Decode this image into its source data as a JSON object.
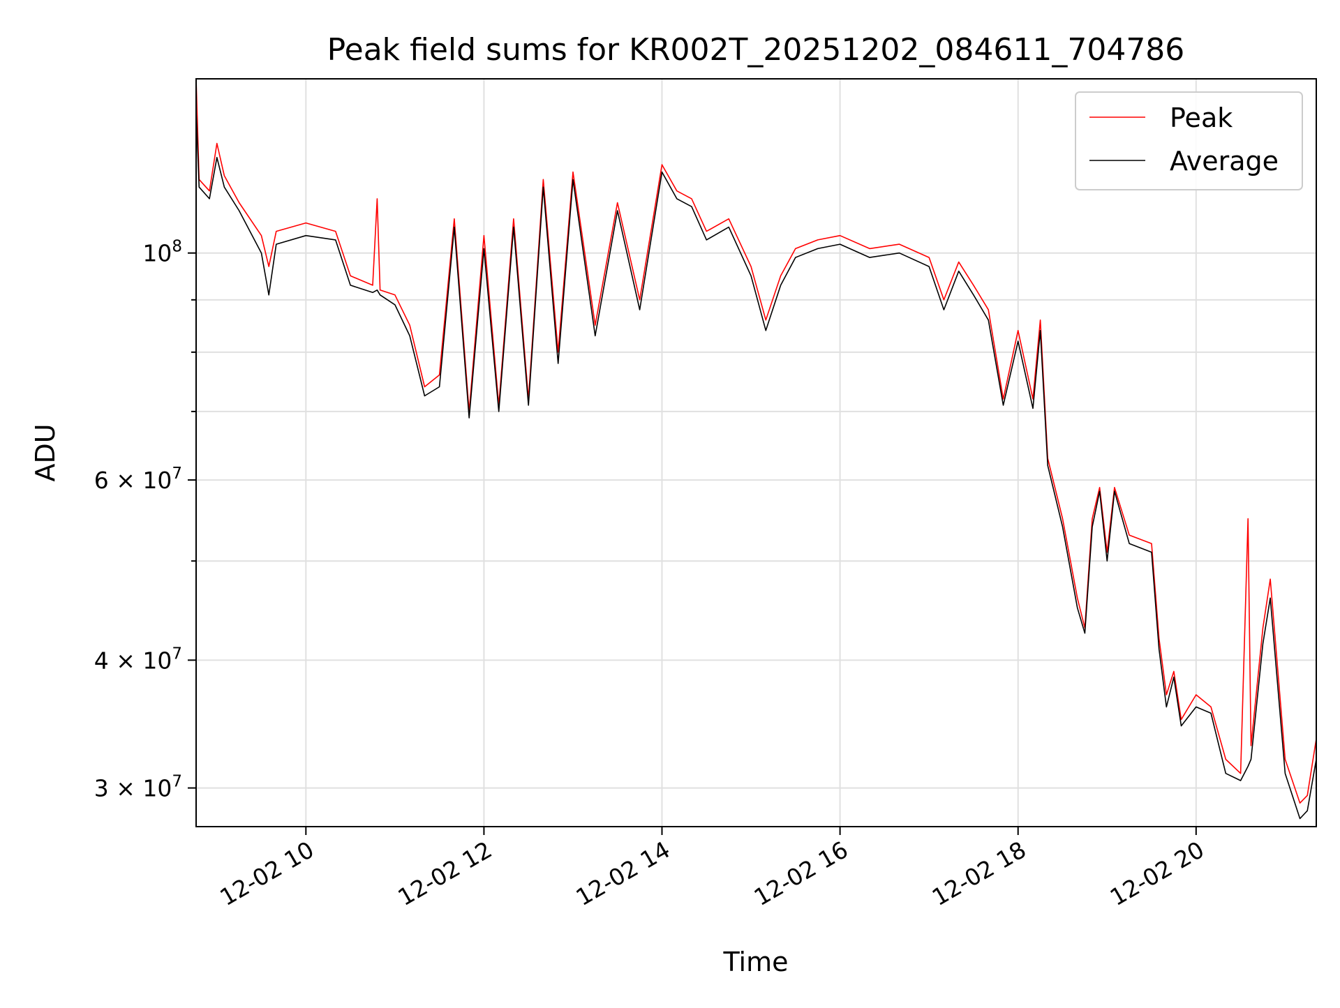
{
  "chart_data": {
    "type": "line",
    "title": "Peak field sums for KR002T_20251202_084611_704786",
    "xlabel": "Time",
    "ylabel": "ADU",
    "x_scale": "time",
    "y_scale": "log",
    "xlim": [
      "2025-12-02 08:46",
      "2025-12-02 21:21"
    ],
    "ylim": [
      27500000,
      148000000
    ],
    "x_ticks": [
      {
        "value": "2025-12-02 10:00",
        "label": "12-02 10"
      },
      {
        "value": "2025-12-02 12:00",
        "label": "12-02 12"
      },
      {
        "value": "2025-12-02 14:00",
        "label": "12-02 14"
      },
      {
        "value": "2025-12-02 16:00",
        "label": "12-02 16"
      },
      {
        "value": "2025-12-02 18:00",
        "label": "12-02 18"
      },
      {
        "value": "2025-12-02 20:00",
        "label": "12-02 20"
      }
    ],
    "y_major_ticks": [
      {
        "value": 100000000,
        "base": "10",
        "exp": "8"
      },
      {
        "value": 60000000,
        "base": "6 × 10",
        "exp": "7"
      },
      {
        "value": 40000000,
        "base": "4 × 10",
        "exp": "7"
      },
      {
        "value": 30000000,
        "base": "3 × 10",
        "exp": "7"
      }
    ],
    "y_minor_ticks": [
      90000000,
      80000000,
      70000000,
      50000000
    ],
    "grid": true,
    "legend_position": "upper right",
    "series": [
      {
        "name": "Peak",
        "color": "#ff0000",
        "points": [
          [
            "2025-12-02 08:46",
            148000000
          ],
          [
            "2025-12-02 08:48",
            118000000
          ],
          [
            "2025-12-02 08:55",
            115000000
          ],
          [
            "2025-12-02 09:00",
            128000000
          ],
          [
            "2025-12-02 09:05",
            119000000
          ],
          [
            "2025-12-02 09:15",
            112000000
          ],
          [
            "2025-12-02 09:30",
            104000000
          ],
          [
            "2025-12-02 09:35",
            97000000
          ],
          [
            "2025-12-02 09:40",
            105000000
          ],
          [
            "2025-12-02 10:00",
            107000000
          ],
          [
            "2025-12-02 10:20",
            105000000
          ],
          [
            "2025-12-02 10:30",
            95000000
          ],
          [
            "2025-12-02 10:45",
            93000000
          ],
          [
            "2025-12-02 10:48",
            113000000
          ],
          [
            "2025-12-02 10:50",
            92000000
          ],
          [
            "2025-12-02 11:00",
            91000000
          ],
          [
            "2025-12-02 11:10",
            85000000
          ],
          [
            "2025-12-02 11:20",
            74000000
          ],
          [
            "2025-12-02 11:30",
            76000000
          ],
          [
            "2025-12-02 11:40",
            108000000
          ],
          [
            "2025-12-02 11:50",
            70000000
          ],
          [
            "2025-12-02 12:00",
            104000000
          ],
          [
            "2025-12-02 12:10",
            71000000
          ],
          [
            "2025-12-02 12:20",
            108000000
          ],
          [
            "2025-12-02 12:30",
            72000000
          ],
          [
            "2025-12-02 12:40",
            118000000
          ],
          [
            "2025-12-02 12:50",
            80000000
          ],
          [
            "2025-12-02 13:00",
            120000000
          ],
          [
            "2025-12-02 13:15",
            85000000
          ],
          [
            "2025-12-02 13:30",
            112000000
          ],
          [
            "2025-12-02 13:45",
            90000000
          ],
          [
            "2025-12-02 14:00",
            122000000
          ],
          [
            "2025-12-02 14:10",
            115000000
          ],
          [
            "2025-12-02 14:20",
            113000000
          ],
          [
            "2025-12-02 14:30",
            105000000
          ],
          [
            "2025-12-02 14:45",
            108000000
          ],
          [
            "2025-12-02 15:00",
            97000000
          ],
          [
            "2025-12-02 15:10",
            86000000
          ],
          [
            "2025-12-02 15:20",
            95000000
          ],
          [
            "2025-12-02 15:30",
            101000000
          ],
          [
            "2025-12-02 15:45",
            103000000
          ],
          [
            "2025-12-02 16:00",
            104000000
          ],
          [
            "2025-12-02 16:20",
            101000000
          ],
          [
            "2025-12-02 16:40",
            102000000
          ],
          [
            "2025-12-02 17:00",
            99000000
          ],
          [
            "2025-12-02 17:10",
            90000000
          ],
          [
            "2025-12-02 17:20",
            98000000
          ],
          [
            "2025-12-02 17:30",
            93000000
          ],
          [
            "2025-12-02 17:40",
            88000000
          ],
          [
            "2025-12-02 17:50",
            72000000
          ],
          [
            "2025-12-02 18:00",
            84000000
          ],
          [
            "2025-12-02 18:10",
            72000000
          ],
          [
            "2025-12-02 18:15",
            86000000
          ],
          [
            "2025-12-02 18:20",
            63000000
          ],
          [
            "2025-12-02 18:30",
            55000000
          ],
          [
            "2025-12-02 18:40",
            46000000
          ],
          [
            "2025-12-02 18:45",
            43000000
          ],
          [
            "2025-12-02 18:50",
            55000000
          ],
          [
            "2025-12-02 18:55",
            59000000
          ],
          [
            "2025-12-02 19:00",
            51000000
          ],
          [
            "2025-12-02 19:05",
            59000000
          ],
          [
            "2025-12-02 19:15",
            53000000
          ],
          [
            "2025-12-02 19:30",
            52000000
          ],
          [
            "2025-12-02 19:35",
            42000000
          ],
          [
            "2025-12-02 19:40",
            37000000
          ],
          [
            "2025-12-02 19:45",
            39000000
          ],
          [
            "2025-12-02 19:50",
            35000000
          ],
          [
            "2025-12-02 20:00",
            37000000
          ],
          [
            "2025-12-02 20:10",
            36000000
          ],
          [
            "2025-12-02 20:20",
            32000000
          ],
          [
            "2025-12-02 20:30",
            31000000
          ],
          [
            "2025-12-02 20:35",
            55000000
          ],
          [
            "2025-12-02 20:37",
            33000000
          ],
          [
            "2025-12-02 20:45",
            43000000
          ],
          [
            "2025-12-02 20:50",
            48000000
          ],
          [
            "2025-12-02 21:00",
            32000000
          ],
          [
            "2025-12-02 21:10",
            29000000
          ],
          [
            "2025-12-02 21:15",
            29500000
          ],
          [
            "2025-12-02 21:21",
            33500000
          ]
        ]
      },
      {
        "name": "Average",
        "color": "#000000",
        "points": [
          [
            "2025-12-02 08:46",
            138000000
          ],
          [
            "2025-12-02 08:48",
            116000000
          ],
          [
            "2025-12-02 08:55",
            113000000
          ],
          [
            "2025-12-02 09:00",
            124000000
          ],
          [
            "2025-12-02 09:05",
            116000000
          ],
          [
            "2025-12-02 09:15",
            110000000
          ],
          [
            "2025-12-02 09:30",
            100000000
          ],
          [
            "2025-12-02 09:35",
            91000000
          ],
          [
            "2025-12-02 09:40",
            102000000
          ],
          [
            "2025-12-02 10:00",
            104000000
          ],
          [
            "2025-12-02 10:20",
            103000000
          ],
          [
            "2025-12-02 10:30",
            93000000
          ],
          [
            "2025-12-02 10:45",
            91500000
          ],
          [
            "2025-12-02 10:48",
            92000000
          ],
          [
            "2025-12-02 10:50",
            91000000
          ],
          [
            "2025-12-02 11:00",
            89000000
          ],
          [
            "2025-12-02 11:10",
            83000000
          ],
          [
            "2025-12-02 11:20",
            72500000
          ],
          [
            "2025-12-02 11:30",
            74000000
          ],
          [
            "2025-12-02 11:40",
            106000000
          ],
          [
            "2025-12-02 11:50",
            69000000
          ],
          [
            "2025-12-02 12:00",
            101000000
          ],
          [
            "2025-12-02 12:10",
            70000000
          ],
          [
            "2025-12-02 12:20",
            106000000
          ],
          [
            "2025-12-02 12:30",
            71000000
          ],
          [
            "2025-12-02 12:40",
            116000000
          ],
          [
            "2025-12-02 12:50",
            78000000
          ],
          [
            "2025-12-02 13:00",
            118000000
          ],
          [
            "2025-12-02 13:15",
            83000000
          ],
          [
            "2025-12-02 13:30",
            110000000
          ],
          [
            "2025-12-02 13:45",
            88000000
          ],
          [
            "2025-12-02 14:00",
            120000000
          ],
          [
            "2025-12-02 14:10",
            113000000
          ],
          [
            "2025-12-02 14:20",
            111000000
          ],
          [
            "2025-12-02 14:30",
            103000000
          ],
          [
            "2025-12-02 14:45",
            106000000
          ],
          [
            "2025-12-02 15:00",
            95000000
          ],
          [
            "2025-12-02 15:10",
            84000000
          ],
          [
            "2025-12-02 15:20",
            93000000
          ],
          [
            "2025-12-02 15:30",
            99000000
          ],
          [
            "2025-12-02 15:45",
            101000000
          ],
          [
            "2025-12-02 16:00",
            102000000
          ],
          [
            "2025-12-02 16:20",
            99000000
          ],
          [
            "2025-12-02 16:40",
            100000000
          ],
          [
            "2025-12-02 17:00",
            97000000
          ],
          [
            "2025-12-02 17:10",
            88000000
          ],
          [
            "2025-12-02 17:20",
            96000000
          ],
          [
            "2025-12-02 17:30",
            91000000
          ],
          [
            "2025-12-02 17:40",
            86000000
          ],
          [
            "2025-12-02 17:50",
            71000000
          ],
          [
            "2025-12-02 18:00",
            82000000
          ],
          [
            "2025-12-02 18:10",
            70500000
          ],
          [
            "2025-12-02 18:15",
            84000000
          ],
          [
            "2025-12-02 18:20",
            62000000
          ],
          [
            "2025-12-02 18:30",
            54000000
          ],
          [
            "2025-12-02 18:40",
            45000000
          ],
          [
            "2025-12-02 18:45",
            42500000
          ],
          [
            "2025-12-02 18:50",
            54000000
          ],
          [
            "2025-12-02 18:55",
            58500000
          ],
          [
            "2025-12-02 19:00",
            50000000
          ],
          [
            "2025-12-02 19:05",
            58500000
          ],
          [
            "2025-12-02 19:15",
            52000000
          ],
          [
            "2025-12-02 19:30",
            51000000
          ],
          [
            "2025-12-02 19:35",
            41000000
          ],
          [
            "2025-12-02 19:40",
            36000000
          ],
          [
            "2025-12-02 19:45",
            38500000
          ],
          [
            "2025-12-02 19:50",
            34500000
          ],
          [
            "2025-12-02 20:00",
            36000000
          ],
          [
            "2025-12-02 20:10",
            35500000
          ],
          [
            "2025-12-02 20:20",
            31000000
          ],
          [
            "2025-12-02 20:30",
            30500000
          ],
          [
            "2025-12-02 20:35",
            31500000
          ],
          [
            "2025-12-02 20:37",
            32000000
          ],
          [
            "2025-12-02 20:45",
            41500000
          ],
          [
            "2025-12-02 20:50",
            46000000
          ],
          [
            "2025-12-02 21:00",
            31000000
          ],
          [
            "2025-12-02 21:10",
            28000000
          ],
          [
            "2025-12-02 21:15",
            28500000
          ],
          [
            "2025-12-02 21:21",
            32000000
          ]
        ]
      }
    ]
  }
}
